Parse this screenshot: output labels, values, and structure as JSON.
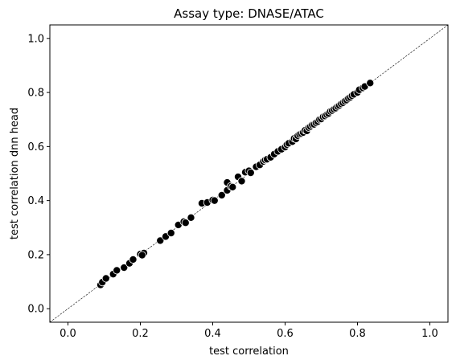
{
  "chart_data": {
    "type": "scatter",
    "title": "Assay type: DNASE/ATAC",
    "xlabel": "test correlation",
    "ylabel": "test correlation dnn head",
    "xlim": [
      -0.05,
      1.05
    ],
    "ylim": [
      -0.05,
      1.05
    ],
    "xticks": [
      "0.0",
      "0.2",
      "0.4",
      "0.6",
      "0.8",
      "1.0"
    ],
    "yticks": [
      "0.0",
      "0.2",
      "0.4",
      "0.6",
      "0.8",
      "1.0"
    ],
    "grid": false,
    "legend": "none",
    "reference_line": {
      "style": "dashed",
      "from": [
        -0.05,
        -0.05
      ],
      "to": [
        1.05,
        1.05
      ]
    },
    "marker_color": "#000000",
    "marker_edge_color": "#ffffff",
    "points": [
      [
        0.09,
        0.088
      ],
      [
        0.095,
        0.098
      ],
      [
        0.105,
        0.112
      ],
      [
        0.125,
        0.128
      ],
      [
        0.135,
        0.142
      ],
      [
        0.155,
        0.152
      ],
      [
        0.17,
        0.168
      ],
      [
        0.18,
        0.182
      ],
      [
        0.2,
        0.202
      ],
      [
        0.21,
        0.206
      ],
      [
        0.205,
        0.198
      ],
      [
        0.255,
        0.252
      ],
      [
        0.27,
        0.267
      ],
      [
        0.285,
        0.28
      ],
      [
        0.305,
        0.31
      ],
      [
        0.32,
        0.322
      ],
      [
        0.325,
        0.318
      ],
      [
        0.34,
        0.337
      ],
      [
        0.37,
        0.39
      ],
      [
        0.385,
        0.393
      ],
      [
        0.4,
        0.402
      ],
      [
        0.405,
        0.4
      ],
      [
        0.425,
        0.42
      ],
      [
        0.44,
        0.438
      ],
      [
        0.44,
        0.467
      ],
      [
        0.45,
        0.453
      ],
      [
        0.455,
        0.45
      ],
      [
        0.47,
        0.488
      ],
      [
        0.48,
        0.472
      ],
      [
        0.49,
        0.505
      ],
      [
        0.5,
        0.51
      ],
      [
        0.505,
        0.503
      ],
      [
        0.52,
        0.525
      ],
      [
        0.53,
        0.532
      ],
      [
        0.54,
        0.545
      ],
      [
        0.545,
        0.55
      ],
      [
        0.55,
        0.553
      ],
      [
        0.56,
        0.56
      ],
      [
        0.57,
        0.572
      ],
      [
        0.58,
        0.582
      ],
      [
        0.59,
        0.59
      ],
      [
        0.6,
        0.598
      ],
      [
        0.605,
        0.607
      ],
      [
        0.61,
        0.612
      ],
      [
        0.62,
        0.618
      ],
      [
        0.625,
        0.63
      ],
      [
        0.63,
        0.628
      ],
      [
        0.635,
        0.64
      ],
      [
        0.64,
        0.645
      ],
      [
        0.645,
        0.648
      ],
      [
        0.65,
        0.652
      ],
      [
        0.655,
        0.66
      ],
      [
        0.66,
        0.658
      ],
      [
        0.665,
        0.67
      ],
      [
        0.67,
        0.674
      ],
      [
        0.675,
        0.68
      ],
      [
        0.68,
        0.682
      ],
      [
        0.685,
        0.688
      ],
      [
        0.69,
        0.692
      ],
      [
        0.695,
        0.7
      ],
      [
        0.7,
        0.702
      ],
      [
        0.705,
        0.71
      ],
      [
        0.71,
        0.713
      ],
      [
        0.715,
        0.718
      ],
      [
        0.72,
        0.722
      ],
      [
        0.725,
        0.73
      ],
      [
        0.73,
        0.733
      ],
      [
        0.735,
        0.738
      ],
      [
        0.74,
        0.742
      ],
      [
        0.745,
        0.748
      ],
      [
        0.75,
        0.752
      ],
      [
        0.755,
        0.758
      ],
      [
        0.76,
        0.762
      ],
      [
        0.765,
        0.768
      ],
      [
        0.77,
        0.772
      ],
      [
        0.775,
        0.778
      ],
      [
        0.78,
        0.782
      ],
      [
        0.785,
        0.788
      ],
      [
        0.79,
        0.793
      ],
      [
        0.8,
        0.8
      ],
      [
        0.805,
        0.81
      ],
      [
        0.815,
        0.817
      ],
      [
        0.82,
        0.822
      ],
      [
        0.835,
        0.835
      ]
    ]
  }
}
